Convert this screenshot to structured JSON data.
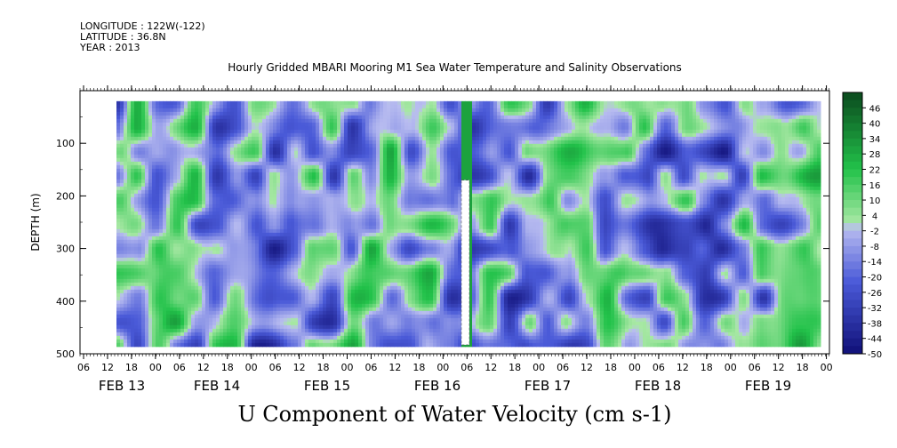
{
  "header": {
    "longitude": "LONGITUDE : 122W(-122)",
    "latitude": "LATITUDE : 36.8N",
    "year": "YEAR : 2013"
  },
  "chart_data": {
    "type": "heatmap",
    "title": "Hourly Gridded MBARI Mooring M1 Sea Water Temperature and Salinity Observations",
    "xlabel": "U Component of Water Velocity (cm s-1)",
    "ylabel": "DEPTH (m)",
    "x_hour_ticks": [
      "06",
      "12",
      "18",
      "00",
      "06",
      "12",
      "18",
      "00",
      "06",
      "12",
      "18",
      "00",
      "06",
      "12",
      "18",
      "00",
      "06",
      "12",
      "18",
      "00",
      "06",
      "12",
      "18",
      "00",
      "06",
      "12",
      "18",
      "00",
      "06",
      "12",
      "18",
      "00"
    ],
    "x_day_labels": [
      "FEB 13",
      "FEB 14",
      "FEB 15",
      "FEB 16",
      "FEB 17",
      "FEB 18",
      "FEB 19"
    ],
    "y_ticks": [
      100,
      200,
      300,
      400,
      500
    ],
    "ylim": [
      500,
      0
    ],
    "colorbar_labels": [
      "46",
      "40",
      "34",
      "28",
      "22",
      "16",
      "10",
      "4",
      "-2",
      "-8",
      "-14",
      "-20",
      "-26",
      "-32",
      "-38",
      "-44",
      "-50"
    ],
    "colorbar_range": [
      -50,
      52
    ],
    "colors": {
      "positive_dark": "#0b4a1e",
      "positive_mid": "#22c24a",
      "positive_light": "#a8e8a4",
      "negative_light": "#b8bcf0",
      "negative_mid": "#4a5ad8",
      "negative_dark": "#101078"
    }
  }
}
